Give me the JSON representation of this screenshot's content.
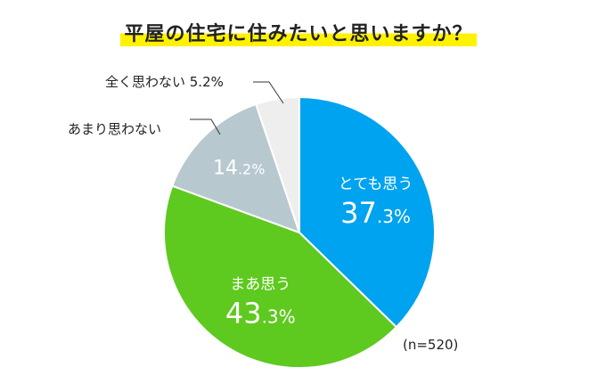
{
  "chart_data": {
    "type": "pie",
    "title": "平屋の住宅に住みたいと思いますか？",
    "note": "(n=520)",
    "slices": [
      {
        "label": "とても思う",
        "value": 37.3,
        "value_text_main": "37",
        "value_text_sub": ".3%",
        "color": "#00a3ef"
      },
      {
        "label": "まあ思う",
        "value": 43.3,
        "value_text_main": "43",
        "value_text_sub": ".3%",
        "color": "#5ec91e"
      },
      {
        "label": "あまり思わない",
        "value": 14.2,
        "value_text_main": "14",
        "value_text_sub": ".2%",
        "color": "#b8c8cf"
      },
      {
        "label": "全く思わない",
        "value": 5.2,
        "value_text": "5.2%",
        "color": "#eeeeee"
      }
    ]
  }
}
